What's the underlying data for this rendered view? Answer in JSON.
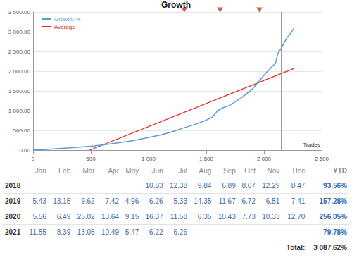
{
  "chart_data": {
    "type": "line",
    "title": "Growth",
    "xlabel": "Trades",
    "grid": true,
    "legend": "top-left",
    "xlim": [
      0,
      2500
    ],
    "xticks": [
      0,
      500,
      {
        "value": 1000,
        "label": "1 000"
      },
      {
        "value": 1500,
        "label": "1 500"
      },
      {
        "value": 2000,
        "label": "2 000"
      },
      {
        "value": 2500,
        "label": "2 500"
      }
    ],
    "ylim": [
      0,
      3500
    ],
    "yticks": [
      {
        "value": 0,
        "label": "0.00"
      },
      {
        "value": 500,
        "label": "500.00"
      },
      {
        "value": 1000,
        "label": "1 000.00"
      },
      {
        "value": 1500,
        "label": "1 500.00"
      },
      {
        "value": 2000,
        "label": "2 000.00"
      },
      {
        "value": 2500,
        "label": "2 500.00"
      },
      {
        "value": 3000,
        "label": "3 000.00"
      },
      {
        "value": 3500,
        "label": "3 500.00"
      }
    ],
    "series": [
      {
        "name": "Growth, %",
        "color": "#5b9bd5",
        "x": [
          0,
          100,
          200,
          300,
          400,
          500,
          600,
          700,
          800,
          900,
          1000,
          1100,
          1200,
          1300,
          1400,
          1500,
          1550,
          1600,
          1650,
          1700,
          1750,
          1800,
          1850,
          1900,
          1950,
          2000,
          2050,
          2100,
          2120,
          2150,
          2170,
          2200,
          2230,
          2260
        ],
        "values": [
          0,
          15,
          35,
          55,
          75,
          100,
          130,
          170,
          210,
          260,
          320,
          380,
          460,
          560,
          650,
          760,
          830,
          1000,
          1080,
          1130,
          1220,
          1320,
          1430,
          1550,
          1720,
          1900,
          2060,
          2200,
          2450,
          2580,
          2700,
          2850,
          2960,
          3088
        ]
      },
      {
        "name": "Average",
        "color": "#e8231d",
        "x": [
          490,
          2260
        ],
        "values": [
          0,
          2070
        ]
      }
    ],
    "events": {
      "x": [
        1310,
        1620,
        1960
      ],
      "color": "#c0392b",
      "marker": "triangle"
    },
    "vline": 2150
  },
  "table": {
    "columns": [
      "Jan",
      "Feb",
      "Mar",
      "Apr",
      "May",
      "Jun",
      "Jul",
      "Aug",
      "Sep",
      "Oct",
      "Nov",
      "Dec",
      "YTD"
    ],
    "rows": [
      {
        "year": "2018",
        "cells": [
          null,
          null,
          null,
          null,
          null,
          "10.83",
          "12.38",
          "9.84",
          "6.89",
          "8.67",
          "12.29",
          "8.47"
        ],
        "ytd": "93.56%"
      },
      {
        "year": "2019",
        "cells": [
          "5.43",
          "13.15",
          "9.62",
          "7.42",
          "4.96",
          "6.26",
          "5.33",
          "14.35",
          "11.67",
          "6.72",
          "6.51",
          "7.41"
        ],
        "ytd": "157.28%"
      },
      {
        "year": "2020",
        "cells": [
          "5.56",
          "6.49",
          "25.02",
          "13.64",
          "9.15",
          "16.37",
          "11.58",
          "6.35",
          "10.43",
          "7.73",
          "10.33",
          "12.70"
        ],
        "ytd": "256.05%"
      },
      {
        "year": "2021",
        "cells": [
          "11.55",
          "8.39",
          "13.05",
          "10.49",
          "5.47",
          "6.22",
          "6.26",
          null,
          null,
          null,
          null,
          null
        ],
        "ytd": "79.78%"
      }
    ],
    "total_label": "Total:",
    "total": "3 087.62%"
  }
}
